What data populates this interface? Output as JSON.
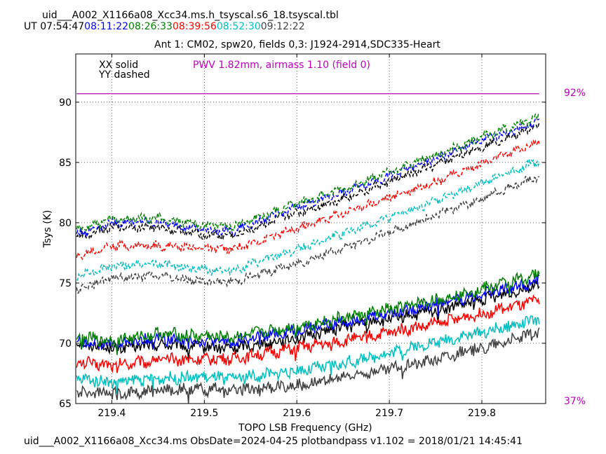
{
  "header": {
    "filename": "uid___A002_X1166a08_Xcc34.ms.h_tsyscal.s6_18.tsyscal.tbl",
    "ut_label": "UT",
    "ut_times": [
      {
        "text": "07:54:47",
        "color": "#000000"
      },
      {
        "text": "08:11:22",
        "color": "#0000ff"
      },
      {
        "text": "08:26:33",
        "color": "#008000"
      },
      {
        "text": "08:39:56",
        "color": "#ff0000"
      },
      {
        "text": "08:52:30",
        "color": "#00bfbf"
      },
      {
        "text": "09:12:22",
        "color": "#404040"
      }
    ],
    "subtitle": "Ant 1: CM02,  spw20,  fields 0,3: J1924-2914,SDC335-Heart"
  },
  "footer": {
    "text": "uid___A002_X1166a08_Xcc34.ms  ObsDate=2024-04-25   plotbandpass v1.102 = 2018/01/21 14:45:41"
  },
  "legend": {
    "solid_label": "XX solid",
    "dashed_label": "YY dashed",
    "pwv_label": "PWV 1.82mm, airmass 1.10 (field 0)",
    "pwv_color": "#bf00bf"
  },
  "chart_data": {
    "type": "line",
    "xlabel": "TOPO LSB Frequency (GHz)",
    "ylabel": "Tsys (K)",
    "xlim": [
      219.361,
      219.869
    ],
    "ylim": [
      65,
      94
    ],
    "xticks": [
      "219.4",
      "219.5",
      "219.6",
      "219.7",
      "219.8"
    ],
    "yticks": [
      "65",
      "70",
      "75",
      "80",
      "85",
      "90"
    ],
    "grid": true,
    "x_start": 219.362,
    "x_end": 219.862,
    "right_axis": {
      "labels": [
        "92%",
        "37%"
      ],
      "color": "#bf00bf",
      "transmission_line_y": 90.7
    },
    "series": [
      {
        "scan_time": "07:54:47",
        "color": "#000000",
        "pol": "XX",
        "style": "solid",
        "knots_x": [
          219.362,
          219.4,
          219.45,
          219.5,
          219.53,
          219.6,
          219.65,
          219.7,
          219.75,
          219.8,
          219.862
        ],
        "knots_y": [
          70.0,
          69.6,
          69.9,
          69.7,
          69.6,
          70.4,
          71.4,
          72.0,
          72.7,
          73.6,
          74.9
        ]
      },
      {
        "scan_time": "08:11:22",
        "color": "#0000ff",
        "pol": "XX",
        "style": "solid",
        "knots_x": [
          219.362,
          219.4,
          219.45,
          219.5,
          219.53,
          219.6,
          219.65,
          219.7,
          219.75,
          219.8,
          219.862
        ],
        "knots_y": [
          70.2,
          69.9,
          70.4,
          70.2,
          70.1,
          71.1,
          71.8,
          72.5,
          73.3,
          74.1,
          75.2
        ]
      },
      {
        "scan_time": "08:26:33",
        "color": "#008000",
        "pol": "XX",
        "style": "solid",
        "knots_x": [
          219.362,
          219.4,
          219.45,
          219.5,
          219.53,
          219.6,
          219.65,
          219.7,
          219.75,
          219.8,
          219.862
        ],
        "knots_y": [
          70.5,
          70.2,
          70.8,
          70.6,
          70.5,
          71.4,
          72.1,
          72.8,
          73.6,
          74.5,
          75.7
        ]
      },
      {
        "scan_time": "08:39:56",
        "color": "#ff0000",
        "pol": "XX",
        "style": "solid",
        "knots_x": [
          219.362,
          219.4,
          219.45,
          219.5,
          219.53,
          219.6,
          219.65,
          219.7,
          219.75,
          219.8,
          219.862
        ],
        "knots_y": [
          68.4,
          68.2,
          68.6,
          68.7,
          68.7,
          69.6,
          70.2,
          70.9,
          71.6,
          72.5,
          73.5
        ]
      },
      {
        "scan_time": "08:52:30",
        "color": "#00bfbf",
        "pol": "XX",
        "style": "solid",
        "knots_x": [
          219.362,
          219.4,
          219.45,
          219.5,
          219.53,
          219.6,
          219.65,
          219.7,
          219.75,
          219.8,
          219.862
        ],
        "knots_y": [
          67.1,
          66.8,
          67.1,
          67.2,
          67.1,
          67.7,
          68.3,
          69.2,
          70.1,
          70.9,
          72.0
        ]
      },
      {
        "scan_time": "09:12:22",
        "color": "#404040",
        "pol": "XX",
        "style": "solid",
        "knots_x": [
          219.362,
          219.4,
          219.45,
          219.5,
          219.53,
          219.6,
          219.65,
          219.7,
          219.75,
          219.8,
          219.862
        ],
        "knots_y": [
          66.0,
          65.8,
          66.1,
          66.2,
          66.1,
          66.5,
          67.2,
          67.9,
          68.7,
          69.6,
          70.9
        ]
      },
      {
        "scan_time": "07:54:47",
        "color": "#000000",
        "pol": "YY",
        "style": "dashed",
        "knots_x": [
          219.362,
          219.4,
          219.45,
          219.5,
          219.53,
          219.6,
          219.65,
          219.7,
          219.75,
          219.8,
          219.862
        ],
        "knots_y": [
          78.8,
          79.7,
          79.6,
          79.0,
          78.9,
          80.8,
          82.0,
          83.4,
          84.8,
          86.3,
          88.0
        ]
      },
      {
        "scan_time": "08:11:22",
        "color": "#0000ff",
        "pol": "YY",
        "style": "dashed",
        "knots_x": [
          219.362,
          219.4,
          219.45,
          219.5,
          219.53,
          219.6,
          219.65,
          219.7,
          219.75,
          219.8,
          219.862
        ],
        "knots_y": [
          79.0,
          80.0,
          80.0,
          79.4,
          79.3,
          81.3,
          82.5,
          83.9,
          85.3,
          86.8,
          88.4
        ]
      },
      {
        "scan_time": "08:26:33",
        "color": "#008000",
        "pol": "YY",
        "style": "dashed",
        "knots_x": [
          219.362,
          219.4,
          219.45,
          219.5,
          219.53,
          219.6,
          219.65,
          219.7,
          219.75,
          219.8,
          219.862
        ],
        "knots_y": [
          79.4,
          80.3,
          80.4,
          79.8,
          79.7,
          81.6,
          82.8,
          84.2,
          85.6,
          87.1,
          88.8
        ]
      },
      {
        "scan_time": "08:39:56",
        "color": "#ff0000",
        "pol": "YY",
        "style": "dashed",
        "knots_x": [
          219.362,
          219.4,
          219.45,
          219.5,
          219.53,
          219.6,
          219.65,
          219.7,
          219.75,
          219.8,
          219.862
        ],
        "knots_y": [
          77.2,
          78.1,
          78.1,
          77.9,
          77.8,
          79.5,
          80.8,
          82.1,
          83.4,
          84.9,
          86.7
        ]
      },
      {
        "scan_time": "08:52:30",
        "color": "#00bfbf",
        "pol": "YY",
        "style": "dashed",
        "knots_x": [
          219.362,
          219.4,
          219.45,
          219.5,
          219.53,
          219.6,
          219.65,
          219.7,
          219.75,
          219.8,
          219.862
        ],
        "knots_y": [
          75.6,
          76.4,
          76.6,
          76.1,
          76.0,
          77.8,
          79.1,
          80.4,
          81.8,
          83.3,
          85.1
        ]
      },
      {
        "scan_time": "09:12:22",
        "color": "#404040",
        "pol": "YY",
        "style": "dashed",
        "knots_x": [
          219.362,
          219.4,
          219.45,
          219.5,
          219.53,
          219.6,
          219.65,
          219.7,
          219.75,
          219.8,
          219.862
        ],
        "knots_y": [
          74.5,
          75.4,
          75.6,
          75.1,
          75.1,
          76.6,
          77.9,
          79.2,
          80.6,
          82.0,
          83.9
        ]
      }
    ]
  }
}
